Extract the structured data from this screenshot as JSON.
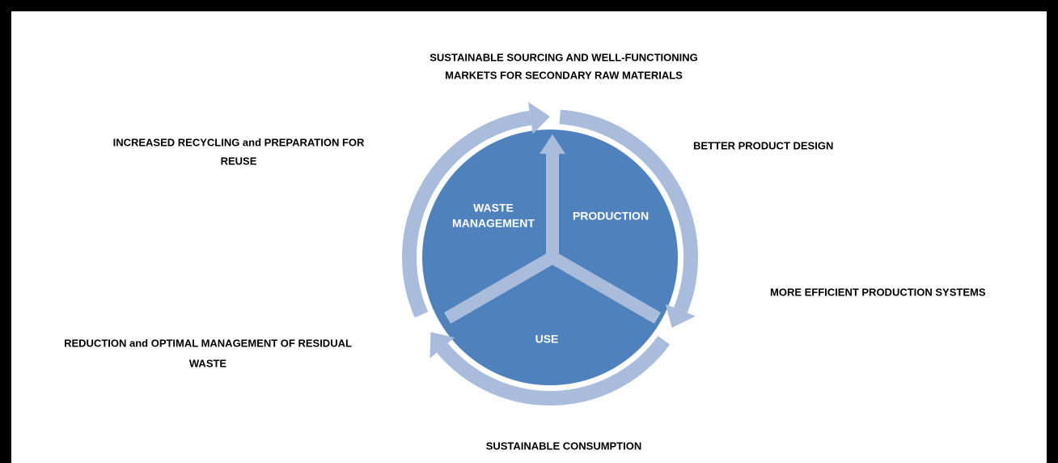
{
  "sectors": [
    {
      "lines": [
        "WASTE",
        "MANAGEMENT"
      ]
    },
    {
      "lines": [
        "PRODUCTION"
      ]
    },
    {
      "lines": [
        "USE"
      ]
    }
  ],
  "outer_labels": [
    {
      "lines": [
        "SUSTAINABLE SOURCING AND WELL-FUNCTIONING",
        "MARKETS FOR SECONDARY RAW MATERIALS"
      ]
    },
    {
      "lines": [
        "BETTER  PRODUCT DESIGN"
      ]
    },
    {
      "lines": [
        "MORE EFFICIENT PRODUCTION SYSTEMS"
      ]
    },
    {
      "lines": [
        "SUSTAINABLE CONSUMPTION"
      ]
    },
    {
      "lines": [
        "REDUCTION and OPTIMAL MANAGEMENT OF RESIDUAL",
        "WASTE"
      ]
    },
    {
      "lines": [
        "INCREASED RECYCLING and PREPARATION FOR",
        "REUSE"
      ]
    }
  ]
}
